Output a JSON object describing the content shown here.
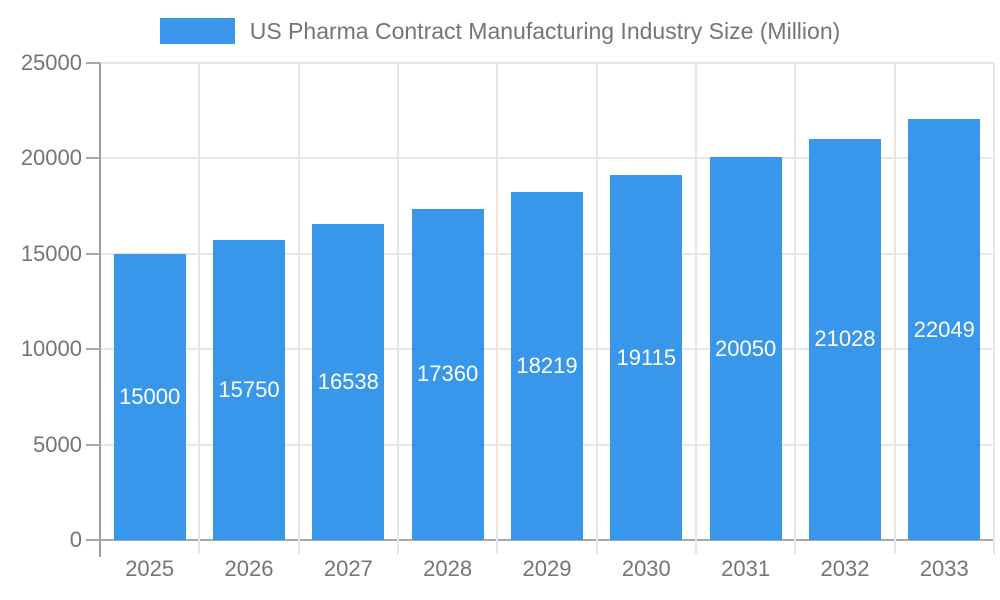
{
  "legend": {
    "label": "US Pharma Contract Manufacturing Industry Size (Million)"
  },
  "chart_data": {
    "type": "bar",
    "title": "US Pharma Contract Manufacturing Industry Size (Million)",
    "categories": [
      "2025",
      "2026",
      "2027",
      "2028",
      "2029",
      "2030",
      "2031",
      "2032",
      "2033"
    ],
    "values": [
      15000,
      15750,
      16538,
      17360,
      18219,
      19115,
      20050,
      21028,
      22049
    ],
    "xlabel": "",
    "ylabel": "",
    "ylim": [
      0,
      25000
    ],
    "yticks": [
      0,
      5000,
      10000,
      15000,
      20000,
      25000
    ],
    "grid": true,
    "legend_position": "top-center",
    "colors": {
      "bar": "#3897eb",
      "bar_label_text": "#ffffff",
      "axis_text": "#757575",
      "gridline": "#e6e6e6",
      "axis_line": "#9e9e9e",
      "baseline": "#a8a8a8",
      "background": "#ffffff"
    }
  }
}
